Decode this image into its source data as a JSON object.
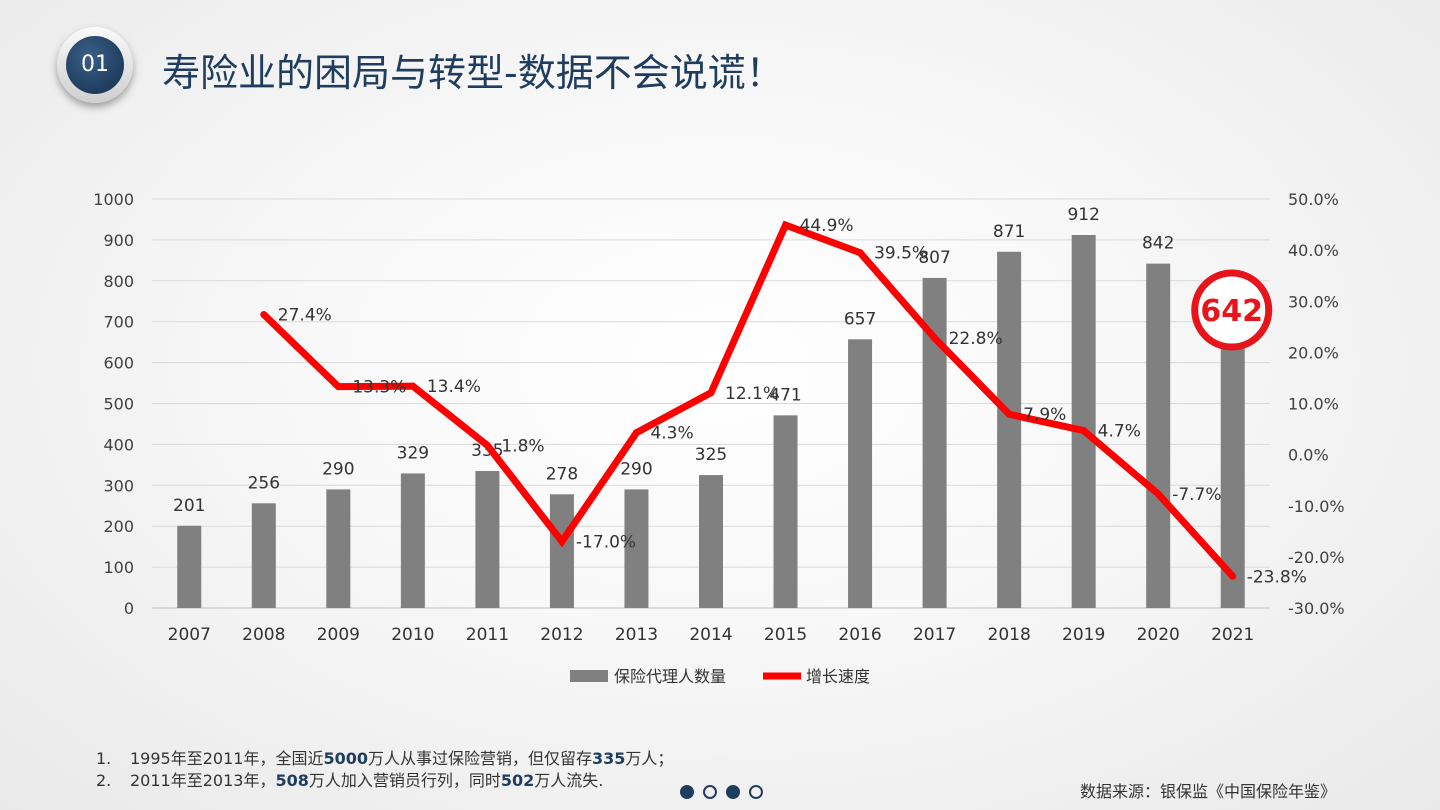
{
  "header": {
    "badge": "01",
    "title": "寿险业的困局与转型-数据不会说谎！"
  },
  "chart_data": {
    "type": "bar+line",
    "categories": [
      "2007",
      "2008",
      "2009",
      "2010",
      "2011",
      "2012",
      "2013",
      "2014",
      "2015",
      "2016",
      "2017",
      "2018",
      "2019",
      "2020",
      "2021"
    ],
    "series": [
      {
        "name": "保险代理人数量",
        "type": "bar",
        "axis": "left",
        "color": "#808080",
        "values": [
          201,
          256,
          290,
          329,
          335,
          278,
          290,
          325,
          471,
          657,
          807,
          871,
          912,
          842,
          642
        ],
        "labels": [
          "201",
          "256",
          "290",
          "329",
          "335",
          "278",
          "290",
          "325",
          "471",
          "657",
          "807",
          "871",
          "912",
          "842",
          ""
        ]
      },
      {
        "name": "增长速度",
        "type": "line",
        "axis": "right",
        "color": "#ff0000",
        "values": [
          null,
          27.4,
          13.3,
          13.4,
          1.8,
          -17.0,
          4.3,
          12.1,
          44.9,
          39.5,
          22.8,
          7.9,
          4.7,
          -7.7,
          -23.8
        ],
        "labels": [
          "",
          "27.4%",
          "13.3%",
          "13.4%",
          "1.8%",
          "-17.0%",
          "4.3%",
          "12.1%",
          "44.9%",
          "39.5%",
          "22.8%",
          "7.9%",
          "4.7%",
          "-7.7%",
          "-23.8%"
        ]
      }
    ],
    "y_left": {
      "min": 0,
      "max": 1000,
      "ticks": [
        "0",
        "100",
        "200",
        "300",
        "400",
        "500",
        "600",
        "700",
        "800",
        "900",
        "1000"
      ]
    },
    "y_right": {
      "min": -30,
      "max": 50,
      "ticks": [
        "-30.0%",
        "-20.0%",
        "-10.0%",
        "0.0%",
        "10.0%",
        "20.0%",
        "30.0%",
        "40.0%",
        "50.0%"
      ]
    },
    "grid": true,
    "legend_position": "bottom",
    "highlight": {
      "category": "2021",
      "label": "642",
      "color": "#e8141b"
    }
  },
  "notes": [
    {
      "num": "1.",
      "parts": [
        "1995年至2011年，全国近",
        "5000",
        "万人从事过保险营销，但仅留存",
        "335",
        "万人；"
      ]
    },
    {
      "num": "2.",
      "parts": [
        "2011年至2013年，",
        "508",
        "万人加入营销员行列，同时",
        "502",
        "万人流失."
      ]
    }
  ],
  "source": "数据来源：银保监《中国保险年鉴》",
  "colors": {
    "accent": "#1f3d5f",
    "bar": "#808080",
    "line": "#ff0000"
  }
}
